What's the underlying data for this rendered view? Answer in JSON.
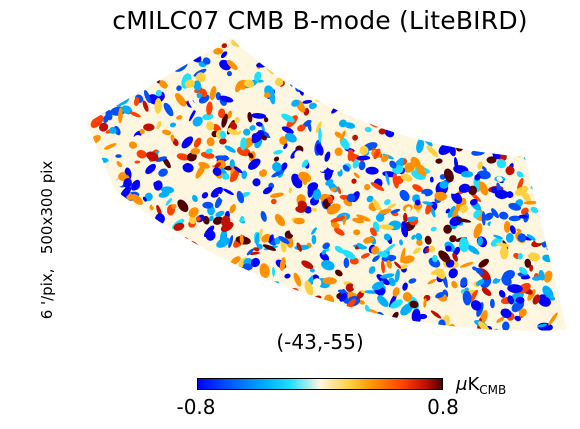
{
  "title": "cMILC07 CMB B-mode (LiteBIRD)",
  "side_label": "6 '/pix,   500x300 pix",
  "center_coordinates": "(-43,-55)",
  "colorbar": {
    "min_label": "-0.8",
    "max_label": "0.8",
    "unit_prefix": "μ",
    "unit_main": "K",
    "unit_subscript": "CMB",
    "colors": [
      "#0000ff",
      "#0050ff",
      "#00b0ff",
      "#20e0ff",
      "#fff6e0",
      "#ffd040",
      "#ff9000",
      "#ff4000",
      "#c01000",
      "#500000"
    ]
  },
  "map": {
    "colormap_name": "planck",
    "noise_seed": 7
  }
}
